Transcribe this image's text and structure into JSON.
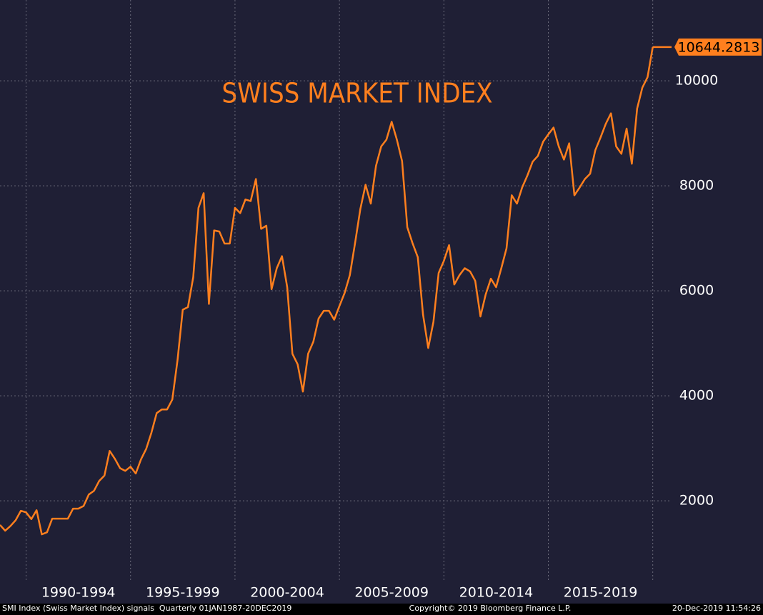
{
  "chart_data": {
    "type": "line",
    "title": "SWISS MARKET INDEX",
    "color": "#ff7f1e",
    "grid": true,
    "x": [
      1988.75,
      1989,
      1989.25,
      1989.5,
      1989.75,
      1990,
      1990.25,
      1990.5,
      1990.75,
      1991,
      1991.25,
      1991.5,
      1991.75,
      1992,
      1992.25,
      1992.5,
      1992.75,
      1993,
      1993.25,
      1993.5,
      1993.75,
      1994,
      1994.25,
      1994.5,
      1994.75,
      1995,
      1995.25,
      1995.5,
      1995.75,
      1996,
      1996.25,
      1996.5,
      1996.75,
      1997,
      1997.25,
      1997.5,
      1997.75,
      1998,
      1998.25,
      1998.5,
      1998.75,
      1999,
      1999.25,
      1999.5,
      1999.75,
      2000,
      2000.25,
      2000.5,
      2000.75,
      2001,
      2001.25,
      2001.5,
      2001.75,
      2002,
      2002.25,
      2002.5,
      2002.75,
      2003,
      2003.25,
      2003.5,
      2003.75,
      2004,
      2004.25,
      2004.5,
      2004.75,
      2005,
      2005.25,
      2005.5,
      2005.75,
      2006,
      2006.25,
      2006.5,
      2006.75,
      2007,
      2007.25,
      2007.5,
      2007.75,
      2008,
      2008.25,
      2008.5,
      2008.75,
      2009,
      2009.25,
      2009.5,
      2009.75,
      2010,
      2010.25,
      2010.5,
      2010.75,
      2011,
      2011.25,
      2011.5,
      2011.75,
      2012,
      2012.25,
      2012.5,
      2012.75,
      2013,
      2013.25,
      2013.5,
      2013.75,
      2014,
      2014.25,
      2014.5,
      2014.75,
      2015,
      2015.25,
      2015.5,
      2015.75,
      2016,
      2016.25,
      2016.5,
      2016.75,
      2017,
      2017.25,
      2017.5,
      2017.75,
      2018,
      2018.25,
      2018.5,
      2018.75,
      2019,
      2019.25,
      2019.5,
      2019.75,
      2020
    ],
    "values": [
      1540,
      1430,
      1520,
      1630,
      1810,
      1780,
      1650,
      1820,
      1360,
      1400,
      1660,
      1660,
      1660,
      1660,
      1850,
      1850,
      1900,
      2120,
      2190,
      2380,
      2480,
      2950,
      2800,
      2620,
      2570,
      2650,
      2520,
      2790,
      2990,
      3300,
      3670,
      3740,
      3740,
      3930,
      4680,
      5640,
      5690,
      6260,
      7580,
      7860,
      5750,
      7150,
      7130,
      6900,
      6900,
      7580,
      7480,
      7740,
      7710,
      8130,
      7180,
      7240,
      6030,
      6430,
      6660,
      6070,
      4800,
      4600,
      4080,
      4800,
      5030,
      5470,
      5620,
      5620,
      5450,
      5710,
      5960,
      6300,
      6910,
      7560,
      8020,
      7660,
      8380,
      8750,
      8880,
      9220,
      8880,
      8470,
      7210,
      6910,
      6640,
      5550,
      4910,
      5410,
      6340,
      6570,
      6870,
      6120,
      6300,
      6430,
      6370,
      6190,
      5510,
      5930,
      6230,
      6070,
      6430,
      6810,
      7820,
      7660,
      7970,
      8200,
      8460,
      8570,
      8840,
      8980,
      9110,
      8750,
      8500,
      8810,
      7820,
      7970,
      8130,
      8230,
      8680,
      8920,
      9180,
      9380,
      8750,
      8610,
      9090,
      8420,
      9470,
      9870,
      10070,
      10644.2813
    ],
    "xlim": [
      1988.75,
      2020.9
    ],
    "ylim": [
      450,
      11540
    ],
    "yticks": [
      2000,
      4000,
      6000,
      8000,
      10000
    ],
    "xgrid": [
      1990,
      1995,
      2000,
      2005,
      2010,
      2015,
      2020
    ],
    "periods": [
      {
        "label": "1990-1994",
        "start": 1990,
        "end": 1995
      },
      {
        "label": "1995-1999",
        "start": 1995,
        "end": 2000
      },
      {
        "label": "2000-2004",
        "start": 2000,
        "end": 2005
      },
      {
        "label": "2005-2009",
        "start": 2005,
        "end": 2010
      },
      {
        "label": "2010-2014",
        "start": 2010,
        "end": 2015
      },
      {
        "label": "2015-2019",
        "start": 2015,
        "end": 2020
      }
    ]
  },
  "footer": {
    "left": "SMI Index (Swiss Market Index) signals  Quarterly 01JAN1987-20DEC2019",
    "center": "Copyright© 2019 Bloomberg Finance L.P.",
    "right": "20-Dec-2019 11:54:26"
  }
}
